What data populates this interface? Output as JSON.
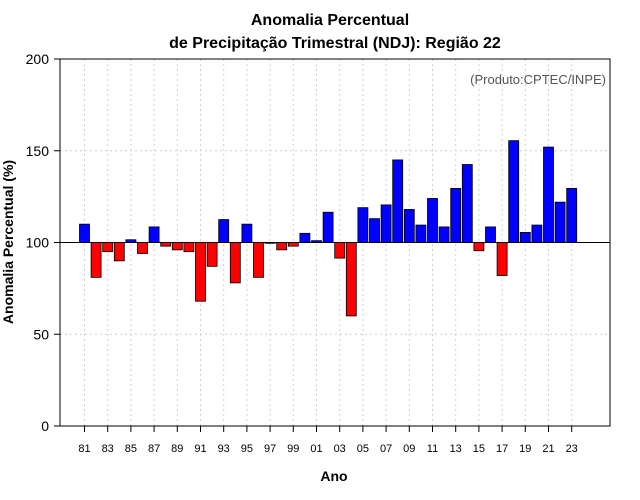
{
  "chart_data": {
    "type": "bar",
    "title_line1": "Anomalia Percentual",
    "title_line2": "de Precipitação Trimestral (NDJ): Região 22",
    "xlabel": "Ano",
    "ylabel": "Anomalia Percentual (%)",
    "credit": "(Produto:CPTEC/INPE)",
    "baseline": 100,
    "ylim": [
      0,
      200
    ],
    "yticks": [
      0,
      50,
      100,
      150,
      200
    ],
    "ytick_labels": [
      "0",
      "50",
      "100",
      "150",
      "200"
    ],
    "grid": true,
    "categories": [
      "81",
      "82",
      "83",
      "84",
      "85",
      "86",
      "87",
      "88",
      "89",
      "90",
      "91",
      "92",
      "93",
      "94",
      "95",
      "96",
      "97",
      "98",
      "99",
      "00",
      "01",
      "02",
      "03",
      "04",
      "05",
      "06",
      "07",
      "08",
      "09",
      "10",
      "11",
      "12",
      "13",
      "14",
      "15",
      "16",
      "17",
      "18",
      "19",
      "20",
      "21",
      "22",
      "23"
    ],
    "xtick_labels": [
      "81",
      "83",
      "85",
      "87",
      "89",
      "91",
      "93",
      "95",
      "97",
      "99",
      "01",
      "03",
      "05",
      "07",
      "09",
      "11",
      "13",
      "15",
      "17",
      "19",
      "21",
      "23"
    ],
    "values": [
      110,
      81,
      95,
      90,
      101.5,
      94,
      108.5,
      98,
      96,
      95,
      68,
      87,
      112.5,
      78,
      110,
      81,
      100,
      96,
      98,
      105,
      101,
      116.5,
      91.5,
      60,
      119,
      113,
      120.5,
      145,
      118,
      109.5,
      124,
      108.5,
      129.5,
      142.5,
      95.5,
      108.5,
      82,
      155.5,
      105.5,
      109.5,
      152,
      122,
      129.5
    ],
    "colors": {
      "above": "#0000ff",
      "below": "#ff0000",
      "edge": "#000000",
      "grid": "#d0d0d0"
    }
  }
}
